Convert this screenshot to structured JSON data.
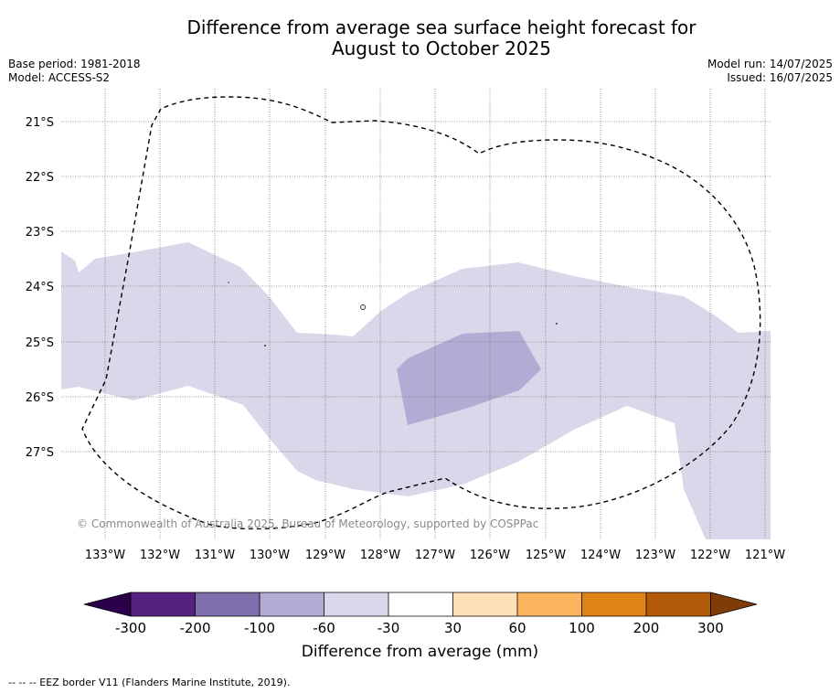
{
  "title": {
    "line1": "Difference from average sea surface height forecast for",
    "line2": "August to October 2025"
  },
  "meta_left": {
    "base_period": "Base period: 1981-2018",
    "model": "Model: ACCESS-S2"
  },
  "meta_right": {
    "model_run": "Model run: 14/07/2025",
    "issued": "Issued: 16/07/2025"
  },
  "map": {
    "lon_labels": [
      "133°W",
      "132°W",
      "131°W",
      "130°W",
      "129°W",
      "128°W",
      "127°W",
      "126°W",
      "125°W",
      "124°W",
      "123°W",
      "122°W",
      "121°W"
    ],
    "lat_labels": [
      "21°S",
      "22°S",
      "23°S",
      "24°S",
      "25°S",
      "26°S",
      "27°S"
    ],
    "copyright": "© Commonwealth of Australia 2025, Bureau of Meteorology, supported by COSPPac",
    "anomaly_regions": [
      {
        "class": "-60 to -30 mm",
        "color": "#d8d8ea"
      },
      {
        "class": "-100 to -60 mm",
        "color": "#b1acd3"
      }
    ],
    "eez_line": "dashed black"
  },
  "colorbar": {
    "label": "Difference from average (mm)",
    "ticks": [
      "-300",
      "-200",
      "-100",
      "-60",
      "-30",
      "30",
      "60",
      "100",
      "200",
      "300"
    ],
    "colors": [
      "#55227f",
      "#7f6fac",
      "#b1acd3",
      "#d8d8ea",
      "#ffffff",
      "#fee0b6",
      "#fbb45f",
      "#e08214",
      "#b25a07"
    ],
    "extend_low_color": "#2d004b",
    "extend_high_color": "#7f3b08"
  },
  "footnote": "-- -- -- EEZ border V11 (Flanders Marine Institute, 2019)."
}
